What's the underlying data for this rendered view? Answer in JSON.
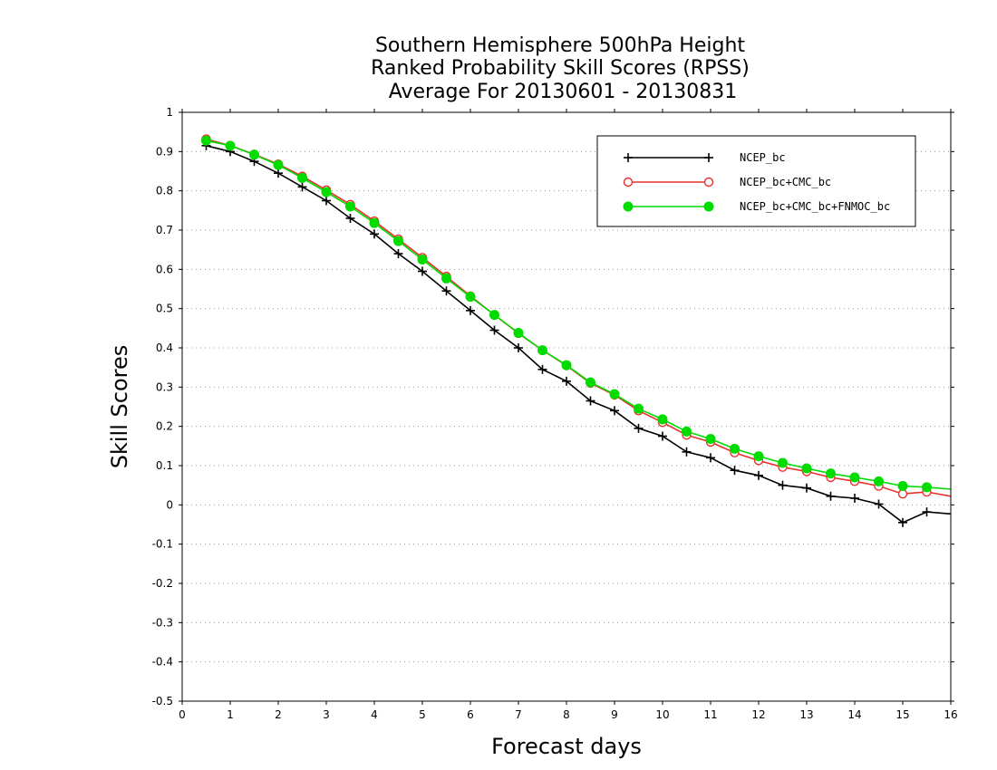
{
  "chart_data": {
    "type": "line",
    "title": [
      "Southern Hemisphere 500hPa Height",
      "Ranked Probability Skill Scores (RPSS)",
      "Average For 20130601 - 20130831"
    ],
    "xlabel": "Forecast days",
    "ylabel": "Skill Scores",
    "xlim": [
      0,
      16
    ],
    "ylim": [
      -0.5,
      1
    ],
    "xticks": [
      0,
      1,
      2,
      3,
      4,
      5,
      6,
      7,
      8,
      9,
      10,
      11,
      12,
      13,
      14,
      15,
      16
    ],
    "xtick_labels": [
      "0",
      "1",
      "2",
      "3",
      "4",
      "5",
      "6",
      "7",
      "8",
      "9",
      "10",
      "11",
      "12",
      "13",
      "14",
      "15",
      "16"
    ],
    "yticks": [
      -0.5,
      -0.4,
      -0.3,
      -0.2,
      -0.1,
      0,
      0.1,
      0.2,
      0.3,
      0.4,
      0.5,
      0.6,
      0.7,
      0.8,
      0.9,
      1
    ],
    "ytick_labels": [
      "-0.5",
      "-0.4",
      "-0.3",
      "-0.2",
      "-0.1",
      "0",
      "0.1",
      "0.2",
      "0.3",
      "0.4",
      "0.5",
      "0.6",
      "0.7",
      "0.8",
      "0.9",
      "1"
    ],
    "grid": "horizontal dotted",
    "legend_position": "top-right",
    "x": [
      0.5,
      1.0,
      1.5,
      2.0,
      2.5,
      3.0,
      3.5,
      4.0,
      4.5,
      5.0,
      5.5,
      6.0,
      6.5,
      7.0,
      7.5,
      8.0,
      8.5,
      9.0,
      9.5,
      10.0,
      10.5,
      11.0,
      11.5,
      12.0,
      12.5,
      13.0,
      13.5,
      14.0,
      14.5,
      15.0,
      15.5,
      16.0
    ],
    "series": [
      {
        "name": "NCEP_bc",
        "color": "#000000",
        "marker": "plus",
        "values": [
          0.915,
          0.9,
          0.875,
          0.845,
          0.81,
          0.775,
          0.73,
          0.69,
          0.64,
          0.595,
          0.545,
          0.495,
          0.445,
          0.4,
          0.345,
          0.315,
          0.265,
          0.24,
          0.195,
          0.175,
          0.135,
          0.12,
          0.088,
          0.075,
          0.05,
          0.043,
          0.022,
          0.017,
          0.002,
          -0.045,
          -0.018,
          -0.023
        ]
      },
      {
        "name": "NCEP_bc+CMC_bc",
        "color": "#e8302c",
        "marker": "open-circle",
        "values": [
          0.932,
          0.915,
          0.893,
          0.868,
          0.837,
          0.802,
          0.765,
          0.723,
          0.677,
          0.63,
          0.582,
          0.532,
          0.484,
          0.437,
          0.394,
          0.355,
          0.31,
          0.28,
          0.24,
          0.21,
          0.178,
          0.16,
          0.133,
          0.113,
          0.096,
          0.085,
          0.07,
          0.06,
          0.048,
          0.028,
          0.033,
          0.022
        ]
      },
      {
        "name": "NCEP_bc+CMC_bc+FNMOC_bc",
        "color": "#00dc00",
        "marker": "filled-circle",
        "values": [
          0.928,
          0.915,
          0.892,
          0.866,
          0.833,
          0.797,
          0.76,
          0.718,
          0.672,
          0.625,
          0.577,
          0.53,
          0.484,
          0.438,
          0.394,
          0.356,
          0.312,
          0.282,
          0.245,
          0.218,
          0.187,
          0.168,
          0.143,
          0.124,
          0.107,
          0.093,
          0.08,
          0.07,
          0.06,
          0.048,
          0.045,
          0.04
        ]
      }
    ]
  }
}
